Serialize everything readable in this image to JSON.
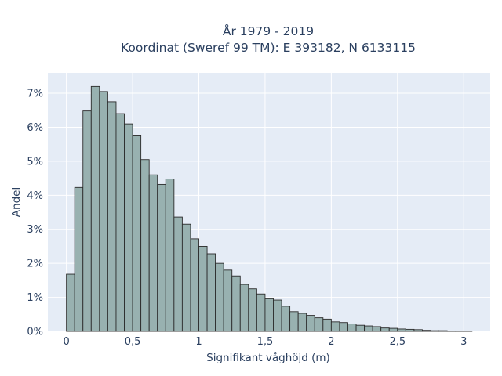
{
  "chart_data": {
    "type": "bar",
    "title_lines": [
      "År 1979 - 2019",
      "Koordinat (Sweref 99 TM): E 393182, N 6133115"
    ],
    "xlabel": "Signifikant våghöjd (m)",
    "ylabel": "Andel",
    "bin_width": 0.0625,
    "bin_starts": [
      0.0,
      0.0625,
      0.125,
      0.1875,
      0.25,
      0.3125,
      0.375,
      0.4375,
      0.5,
      0.5625,
      0.625,
      0.6875,
      0.75,
      0.8125,
      0.875,
      0.9375,
      1.0,
      1.0625,
      1.125,
      1.1875,
      1.25,
      1.3125,
      1.375,
      1.4375,
      1.5,
      1.5625,
      1.625,
      1.6875,
      1.75,
      1.8125,
      1.875,
      1.9375,
      2.0,
      2.0625,
      2.125,
      2.1875,
      2.25,
      2.3125,
      2.375,
      2.4375,
      2.5,
      2.5625,
      2.625,
      2.6875,
      2.75,
      2.8125,
      2.875,
      2.9375,
      3.0
    ],
    "values": [
      1.68,
      4.23,
      6.48,
      7.2,
      7.05,
      6.75,
      6.4,
      6.1,
      5.77,
      5.05,
      4.6,
      4.32,
      4.48,
      3.36,
      3.15,
      2.72,
      2.5,
      2.28,
      2.0,
      1.8,
      1.63,
      1.38,
      1.25,
      1.1,
      0.96,
      0.92,
      0.74,
      0.58,
      0.53,
      0.47,
      0.4,
      0.36,
      0.28,
      0.26,
      0.22,
      0.18,
      0.16,
      0.14,
      0.1,
      0.09,
      0.07,
      0.06,
      0.05,
      0.03,
      0.02,
      0.02,
      0.01,
      0.01,
      0.01
    ],
    "x_ticks": [
      0,
      0.5,
      1,
      1.5,
      2,
      2.5,
      3
    ],
    "x_tick_labels": [
      "0",
      "0,5",
      "1",
      "1,5",
      "2",
      "2,5",
      "3"
    ],
    "y_ticks": [
      0,
      1,
      2,
      3,
      4,
      5,
      6,
      7
    ],
    "y_tick_labels": [
      "0%",
      "1%",
      "2%",
      "3%",
      "4%",
      "5%",
      "6%",
      "7%"
    ],
    "xlim": [
      -0.14,
      3.2
    ],
    "ylim": [
      0,
      7.6
    ],
    "grid": true,
    "bar_color": "#98b1b0",
    "bar_edge_color": "#2b2b2b",
    "plot_bg_color": "#e5ecf6",
    "grid_color": "#ffffff",
    "text_color": "#2a3f5f"
  }
}
